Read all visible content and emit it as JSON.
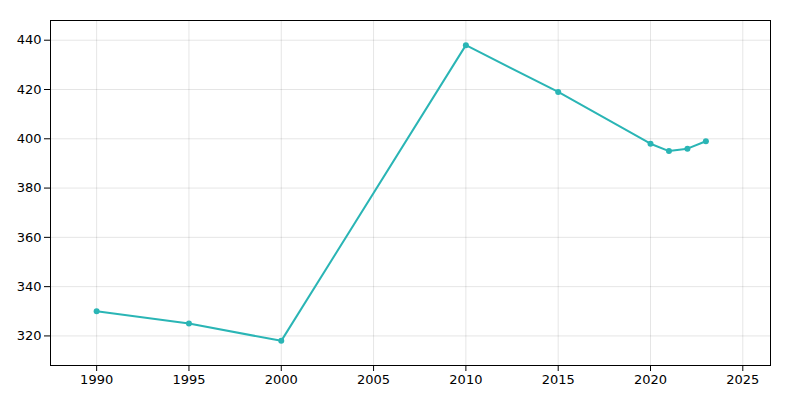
{
  "chart_data": {
    "type": "line",
    "x": [
      1990,
      1995,
      2000,
      2010,
      2015,
      2020,
      2021,
      2022,
      2023
    ],
    "values": [
      330,
      325,
      318,
      438,
      419,
      398,
      395,
      396,
      399
    ],
    "color": "#2ab5b5",
    "marker": "circle",
    "line_style": "solid",
    "xlim": [
      1987.5,
      2026.5
    ],
    "ylim": [
      308,
      448
    ],
    "xticks": [
      1990,
      1995,
      2000,
      2005,
      2010,
      2015,
      2020,
      2025
    ],
    "yticks": [
      320,
      340,
      360,
      380,
      400,
      420,
      440
    ],
    "grid": true
  }
}
